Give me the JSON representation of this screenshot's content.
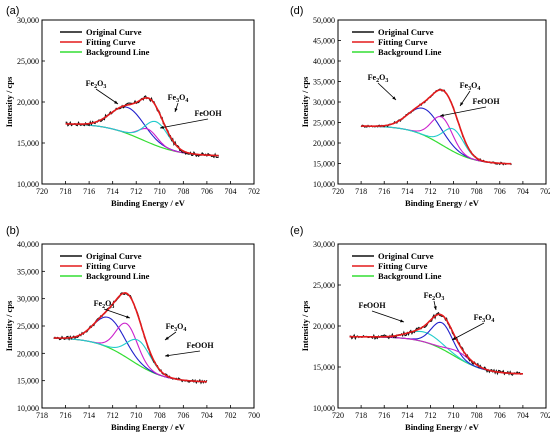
{
  "colors": {
    "original": "#111111",
    "fitting": "#e41a1c",
    "background": "#33dd33",
    "fe2o3": "#2222cc",
    "fe3o4": "#cc22cc",
    "feooh": "#22cccc"
  },
  "chart_data": [
    {
      "type": "line",
      "panel": "(a)",
      "xlabel": "Binding Energy / eV",
      "ylabel": "Intensity / cps",
      "xlim": [
        720,
        702
      ],
      "ylim": [
        10000,
        30000
      ],
      "xticks": [
        "720",
        "718",
        "716",
        "714",
        "712",
        "710",
        "708",
        "706",
        "704",
        "702"
      ],
      "yticks": [
        "10,000",
        "15,000",
        "20,000",
        "25,000",
        "30,000"
      ],
      "legend": [
        "Original Curve",
        "Fitting Curve",
        "Background Line"
      ],
      "legend_position": "top-left",
      "annotations": [
        {
          "main": "Fe",
          "sub1": "2",
          "mid": "O",
          "sub2": "3"
        },
        {
          "main": "Fe",
          "sub1": "3",
          "mid": "O",
          "sub2": "4"
        },
        {
          "main": "FeOOH",
          "sub1": "",
          "mid": "",
          "sub2": ""
        }
      ],
      "fit": {
        "start": 718,
        "end": 705,
        "bg_high": 17400,
        "bg_low": 13400,
        "bg_center": 711.5,
        "bg_width": 1.6,
        "noise": 250
      },
      "peaks": [
        {
          "name": "Fe2O3",
          "center": 712.7,
          "height": 3200,
          "width": 1.4
        },
        {
          "name": "Fe3O4",
          "center": 711.0,
          "height": 1600,
          "width": 0.8
        },
        {
          "name": "FeOOH",
          "center": 710.3,
          "height": 2900,
          "width": 1.0
        }
      ]
    },
    {
      "type": "line",
      "panel": "(d)",
      "xlabel": "Binding Energy / eV",
      "ylabel": "Intensity / cps",
      "xlim": [
        720,
        702
      ],
      "ylim": [
        10000,
        50000
      ],
      "xticks": [
        "720",
        "718",
        "716",
        "714",
        "712",
        "710",
        "708",
        "706",
        "704",
        "702"
      ],
      "yticks": [
        "10,000",
        "15,000",
        "20,000",
        "25,000",
        "30,000",
        "35,000",
        "40,000",
        "45,000",
        "50,000"
      ],
      "legend": [
        "Original Curve",
        "Fitting Curve",
        "Background Line"
      ],
      "legend_position": "top-left",
      "annotations": [
        {
          "main": "Fe",
          "sub1": "2",
          "mid": "O",
          "sub2": "3"
        },
        {
          "main": "Fe",
          "sub1": "3",
          "mid": "O",
          "sub2": "4"
        },
        {
          "main": "FeOOH",
          "sub1": "",
          "mid": "",
          "sub2": ""
        }
      ],
      "fit": {
        "start": 718,
        "end": 705,
        "bg_high": 24200,
        "bg_low": 14800,
        "bg_center": 711.0,
        "bg_width": 1.4,
        "noise": 300
      },
      "peaks": [
        {
          "name": "Fe2O3",
          "center": 712.5,
          "height": 6500,
          "width": 1.4
        },
        {
          "name": "Fe3O4",
          "center": 711.0,
          "height": 6800,
          "width": 0.9
        },
        {
          "name": "FeOOH",
          "center": 710.0,
          "height": 5500,
          "width": 0.9
        }
      ]
    },
    {
      "type": "line",
      "panel": "(b)",
      "xlabel": "Binding Energy / eV",
      "ylabel": "Intensity / cps",
      "xlim": [
        718,
        700
      ],
      "ylim": [
        10000,
        40000
      ],
      "xticks": [
        "718",
        "716",
        "714",
        "712",
        "710",
        "708",
        "706",
        "704",
        "702",
        "700"
      ],
      "yticks": [
        "10,000",
        "15,000",
        "20,000",
        "25,000",
        "30,000",
        "35,000",
        "40,000"
      ],
      "legend": [
        "Original Curve",
        "Fitting Curve",
        "Background Line"
      ],
      "legend_position": "top-left",
      "annotations": [
        {
          "main": "Fe",
          "sub1": "2",
          "mid": "O",
          "sub2": "3"
        },
        {
          "main": "Fe",
          "sub1": "3",
          "mid": "O",
          "sub2": "4"
        },
        {
          "main": "FeOOH",
          "sub1": "",
          "mid": "",
          "sub2": ""
        }
      ],
      "fit": {
        "start": 717,
        "end": 704,
        "bg_high": 22900,
        "bg_low": 14700,
        "bg_center": 710.5,
        "bg_width": 1.5,
        "noise": 300
      },
      "peaks": [
        {
          "name": "Fe2O3",
          "center": 712.3,
          "height": 5500,
          "width": 1.3
        },
        {
          "name": "Fe3O4",
          "center": 710.8,
          "height": 6200,
          "width": 0.9
        },
        {
          "name": "FeOOH",
          "center": 709.8,
          "height": 4500,
          "width": 1.0
        }
      ]
    },
    {
      "type": "line",
      "panel": "(e)",
      "xlabel": "Binding Energy / eV",
      "ylabel": "Intensity / cps",
      "xlim": [
        720,
        702
      ],
      "ylim": [
        10000,
        30000
      ],
      "xticks": [
        "720",
        "718",
        "716",
        "714",
        "712",
        "710",
        "708",
        "706",
        "704",
        "702"
      ],
      "yticks": [
        "10,000",
        "15,000",
        "20,000",
        "25,000",
        "30,000"
      ],
      "legend": [
        "Original Curve",
        "Fitting Curve",
        "Background Line"
      ],
      "legend_position": "top-left",
      "annotations": [
        {
          "main": "FeOOH",
          "sub1": "",
          "mid": "",
          "sub2": ""
        },
        {
          "main": "Fe",
          "sub1": "2",
          "mid": "O",
          "sub2": "3"
        },
        {
          "main": "Fe",
          "sub1": "3",
          "mid": "O",
          "sub2": "4"
        }
      ],
      "fit": {
        "start": 719,
        "end": 704,
        "bg_high": 18700,
        "bg_low": 14100,
        "bg_center": 710.0,
        "bg_width": 1.4,
        "noise": 250
      },
      "peaks": [
        {
          "name": "FeOOH",
          "center": 712.5,
          "height": 1200,
          "width": 1.4
        },
        {
          "name": "Fe2O3",
          "center": 711.0,
          "height": 3200,
          "width": 0.9
        },
        {
          "name": "Fe3O4",
          "center": 709.5,
          "height": 800,
          "width": 1.0
        }
      ]
    }
  ]
}
